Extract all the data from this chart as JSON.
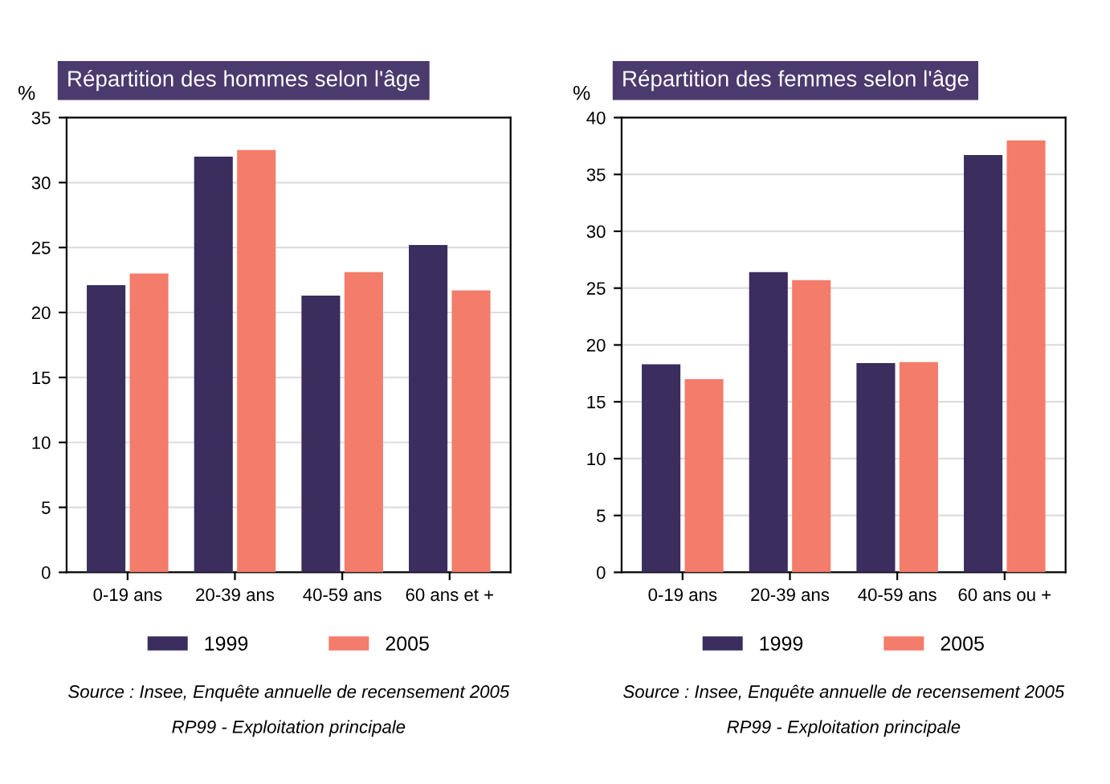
{
  "chart_data": [
    {
      "type": "bar",
      "title": "Répartition des hommes selon l'âge",
      "ylabel": "%",
      "categories": [
        "0-19 ans",
        "20-39 ans",
        "40-59 ans",
        "60 ans et +"
      ],
      "series": [
        {
          "name": "1999",
          "color": "#3b2d5e",
          "values": [
            22.1,
            32.0,
            21.3,
            25.2
          ]
        },
        {
          "name": "2005",
          "color": "#f47c6a",
          "values": [
            23.0,
            32.5,
            23.1,
            21.7
          ]
        }
      ],
      "ylim": [
        0,
        35
      ],
      "yticks": [
        0,
        5,
        10,
        15,
        20,
        25,
        30,
        35
      ],
      "grid": "y",
      "legend": "bottom",
      "annotations": [
        "Source : Insee, Enquête annuelle de recensement 2005",
        "RP99 - Exploitation principale"
      ]
    },
    {
      "type": "bar",
      "title": "Répartition des femmes selon l'âge",
      "ylabel": "%",
      "categories": [
        "0-19 ans",
        "20-39 ans",
        "40-59 ans",
        "60 ans ou +"
      ],
      "series": [
        {
          "name": "1999",
          "color": "#3b2d5e",
          "values": [
            18.3,
            26.4,
            18.4,
            36.7
          ]
        },
        {
          "name": "2005",
          "color": "#f47c6a",
          "values": [
            17.0,
            25.7,
            18.5,
            38.0
          ]
        }
      ],
      "ylim": [
        0,
        40
      ],
      "yticks": [
        0,
        5,
        10,
        15,
        20,
        25,
        30,
        35,
        40
      ],
      "grid": "y",
      "legend": "bottom",
      "annotations": [
        "Source : Insee, Enquête annuelle de recensement 2005",
        "RP99 - Exploitation principale"
      ]
    }
  ]
}
